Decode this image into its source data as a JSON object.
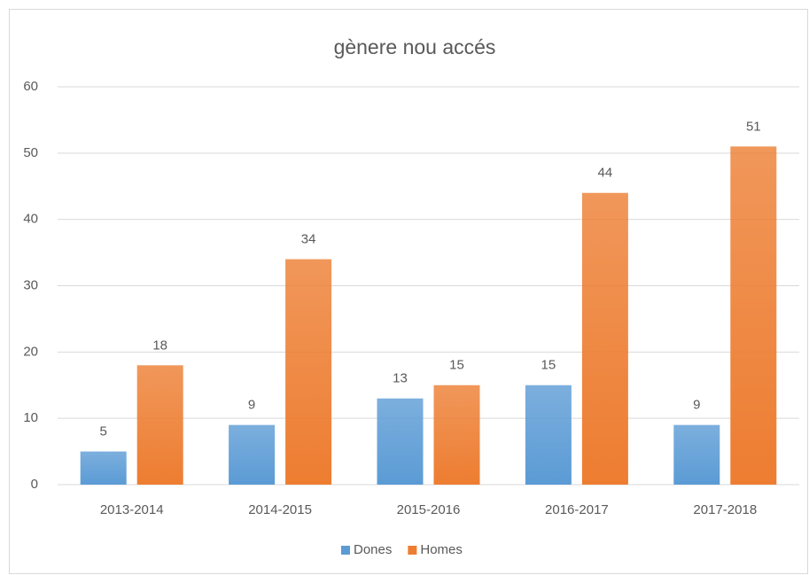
{
  "chart_data": {
    "type": "bar",
    "title": "gènere nou accés",
    "categories": [
      "2013-2014",
      "2014-2015",
      "2015-2016",
      "2016-2017",
      "2017-2018"
    ],
    "series": [
      {
        "name": "Dones",
        "color": "#5b9bd5",
        "values": [
          5,
          9,
          13,
          15,
          9
        ]
      },
      {
        "name": "Homes",
        "color": "#ed7d31",
        "values": [
          18,
          34,
          15,
          44,
          51
        ]
      }
    ],
    "ylim": [
      0,
      60
    ],
    "yticks": [
      0,
      10,
      20,
      30,
      40,
      50,
      60
    ],
    "grid": true,
    "legend": "bottom",
    "data_labels": true
  }
}
